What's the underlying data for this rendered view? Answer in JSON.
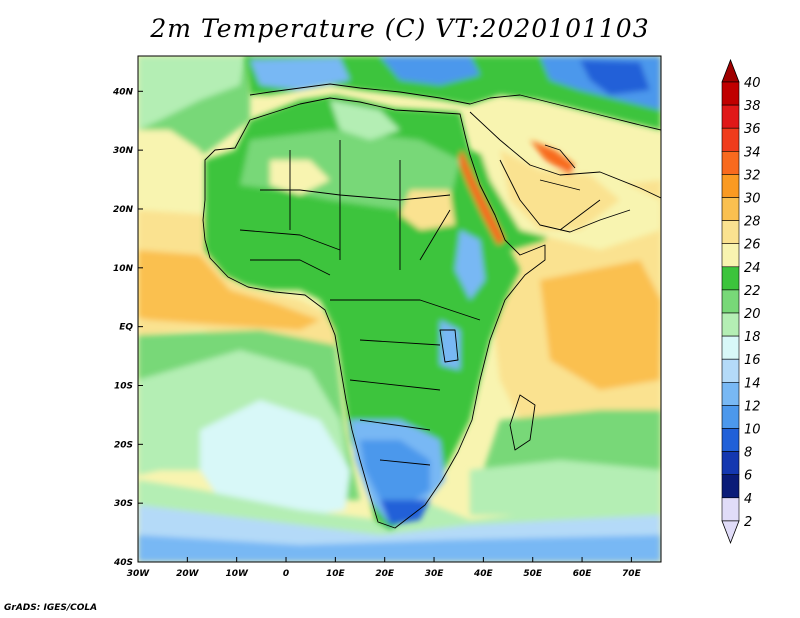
{
  "title": "2m Temperature (C) VT:2020101103",
  "credit": "GrADS: IGES/COLA",
  "map": {
    "lon_range": [
      -30,
      76
    ],
    "lat_range": [
      -40,
      46
    ],
    "lon_ticks": [
      {
        "value": -30,
        "label": "30W"
      },
      {
        "value": -20,
        "label": "20W"
      },
      {
        "value": -10,
        "label": "10W"
      },
      {
        "value": 0,
        "label": "0"
      },
      {
        "value": 10,
        "label": "10E"
      },
      {
        "value": 20,
        "label": "20E"
      },
      {
        "value": 30,
        "label": "30E"
      },
      {
        "value": 40,
        "label": "40E"
      },
      {
        "value": 50,
        "label": "50E"
      },
      {
        "value": 60,
        "label": "60E"
      },
      {
        "value": 70,
        "label": "70E"
      }
    ],
    "lat_ticks": [
      {
        "value": 40,
        "label": "40N"
      },
      {
        "value": 30,
        "label": "30N"
      },
      {
        "value": 20,
        "label": "20N"
      },
      {
        "value": 10,
        "label": "10N"
      },
      {
        "value": 0,
        "label": "EQ"
      },
      {
        "value": -10,
        "label": "10S"
      },
      {
        "value": -20,
        "label": "20S"
      },
      {
        "value": -30,
        "label": "30S"
      },
      {
        "value": -40,
        "label": "40S"
      }
    ]
  },
  "colorbar": {
    "labels": [
      "40",
      "38",
      "36",
      "34",
      "32",
      "30",
      "28",
      "26",
      "24",
      "22",
      "20",
      "18",
      "16",
      "14",
      "12",
      "10",
      "8",
      "6",
      "4",
      "2"
    ],
    "colors_top_to_bottom": [
      "#c00000",
      "#e01818",
      "#f03c1c",
      "#f86a1e",
      "#fa9a22",
      "#fac050",
      "#fae290",
      "#f8f4b0",
      "#3cc43c",
      "#78d878",
      "#b4eeb4",
      "#d8f8f8",
      "#b4daf8",
      "#78b8f4",
      "#4c98ec",
      "#2060d8",
      "#1438b0",
      "#0a1c78",
      "#e0dcf8"
    ]
  }
}
